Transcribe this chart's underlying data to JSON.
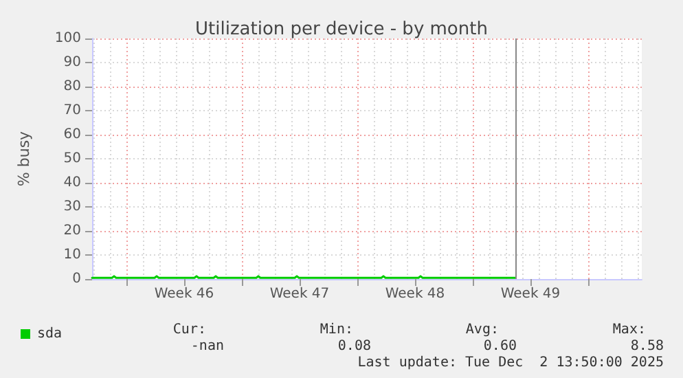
{
  "chart_data": {
    "type": "line",
    "title": "Utilization per device - by month",
    "ylabel": "% busy",
    "xlim": [
      "2025-11-06T22:00",
      "2025-12-10T06:00"
    ],
    "xticks": [
      {
        "value": "2025-11-09",
        "label": null
      },
      {
        "value": "2025-11-12T12:00",
        "label": "Week 46"
      },
      {
        "value": "2025-11-16",
        "label": null
      },
      {
        "value": "2025-11-19T12:00",
        "label": "Week 47"
      },
      {
        "value": "2025-11-23",
        "label": null
      },
      {
        "value": "2025-11-26T12:00",
        "label": "Week 48"
      },
      {
        "value": "2025-11-30",
        "label": null
      },
      {
        "value": "2025-12-03T12:00",
        "label": "Week 49"
      },
      {
        "value": "2025-12-07",
        "label": null
      }
    ],
    "ylim": [
      0,
      100
    ],
    "yticks": [
      0,
      10,
      20,
      30,
      40,
      50,
      60,
      70,
      80,
      90,
      100
    ],
    "grid": true,
    "legend": "bottom left",
    "marker": "none",
    "line_style": "solid",
    "series": [
      {
        "name": "sda",
        "color": "#00cc00",
        "x": [
          "2025-11-06T22:00",
          "2025-11-08T03:00",
          "2025-11-08T06:00",
          "2025-11-08T09:00",
          "2025-11-10T17:00",
          "2025-11-10T20:00",
          "2025-11-10T23:00",
          "2025-11-13T03:00",
          "2025-11-13T06:00",
          "2025-11-13T09:00",
          "2025-11-14T07:00",
          "2025-11-14T10:00",
          "2025-11-14T13:00",
          "2025-11-16T21:00",
          "2025-11-17T00:00",
          "2025-11-17T03:00",
          "2025-11-19T05:00",
          "2025-11-19T08:00",
          "2025-11-19T11:00",
          "2025-11-24T11:00",
          "2025-11-24T14:00",
          "2025-11-24T17:00",
          "2025-11-26T17:00",
          "2025-11-26T20:00",
          "2025-11-26T23:00",
          "2025-12-02T14:00"
        ],
        "values": [
          0.5,
          0.5,
          1.2,
          0.5,
          0.5,
          1.2,
          0.5,
          0.5,
          1.2,
          0.5,
          0.5,
          1.2,
          0.5,
          0.5,
          1.2,
          0.5,
          0.5,
          1.2,
          0.5,
          0.5,
          1.2,
          0.5,
          0.5,
          1.2,
          0.5,
          0.5
        ]
      }
    ],
    "ref_lines": [
      {
        "axis": "x",
        "value": "2025-12-02T14:00",
        "label": null,
        "color": "#888888"
      }
    ],
    "annotations": [
      "Cur:",
      "Min:",
      "Avg:",
      "Max:",
      "-nan",
      "0.08",
      "0.60",
      "8.58",
      "Last update: Tue Dec  2 13:50:00 2025"
    ]
  }
}
